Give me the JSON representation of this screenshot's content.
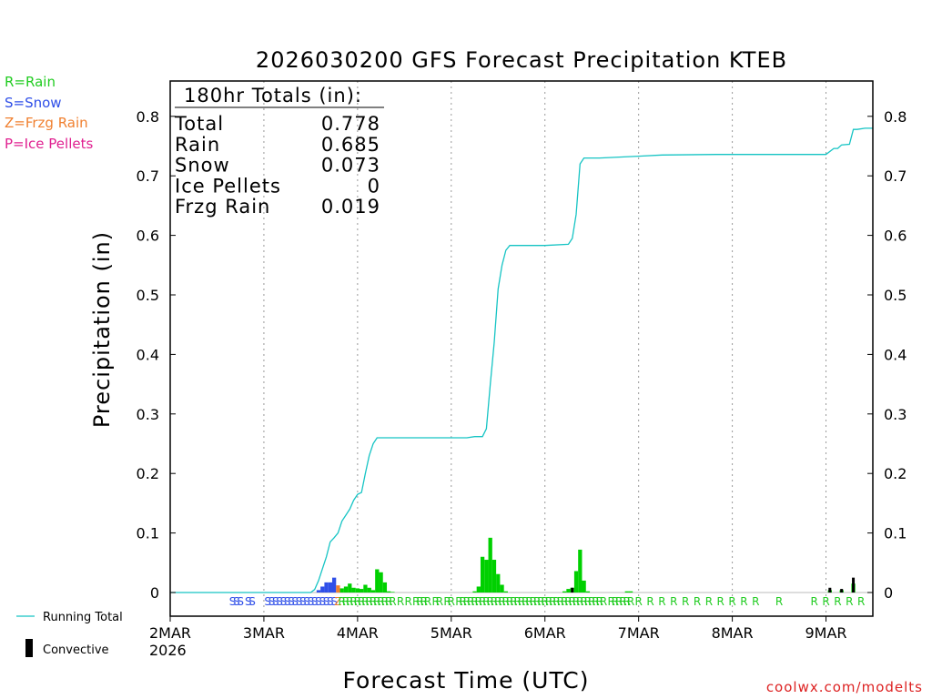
{
  "colors": {
    "rain": "#00d000",
    "snow": "#2f4fe8",
    "frzg": "#f08030",
    "ice": "#e02090",
    "conv": "#000000",
    "total": "#16c4c4",
    "link": "#dd2222"
  },
  "legend_left": [
    {
      "text": "R=Rain",
      "color": "#22cc22"
    },
    {
      "text": "S=Snow",
      "color": "#2f4fe8"
    },
    {
      "text": "Z=Frzg Rain",
      "color": "#f08030"
    },
    {
      "text": "P=Ice Pellets",
      "color": "#e02090"
    }
  ],
  "legend_bottom": {
    "running_total": "Running Total",
    "convective": "Convective",
    "year": "2026"
  },
  "footer": "coolwx.com/modelts",
  "chart_data": {
    "type": "bar",
    "title": "2026030200 GFS Forecast Precipitation KTEB",
    "xlabel": "Forecast Time (UTC)",
    "ylabel": "Precipitation (in)",
    "ylim": [
      0,
      0.86
    ],
    "xlim_hours": [
      0,
      180
    ],
    "yticks": [
      0,
      0.1,
      0.2,
      0.3,
      0.4,
      0.5,
      0.6,
      0.7,
      0.8
    ],
    "ytick_labels": [
      "0",
      "0.1",
      "0.2",
      "0.3",
      "0.4",
      "0.5",
      "0.6",
      "0.7",
      "0.8"
    ],
    "xticks": [
      {
        "hour": 0,
        "label": "2MAR"
      },
      {
        "hour": 24,
        "label": "3MAR"
      },
      {
        "hour": 48,
        "label": "4MAR"
      },
      {
        "hour": 72,
        "label": "5MAR"
      },
      {
        "hour": 96,
        "label": "6MAR"
      },
      {
        "hour": 120,
        "label": "7MAR"
      },
      {
        "hour": 144,
        "label": "8MAR"
      },
      {
        "hour": 168,
        "label": "9MAR"
      }
    ],
    "totals_box": {
      "header": "180hr Totals (in):",
      "rows": [
        {
          "label": "Total",
          "value": "0.778"
        },
        {
          "label": "Rain",
          "value": "0.685"
        },
        {
          "label": "Snow",
          "value": "0.073"
        },
        {
          "label": "Ice Pellets",
          "value": "0"
        },
        {
          "label": "Frzg Rain",
          "value": "0.019"
        }
      ]
    },
    "precip_bars": [
      {
        "hour": 38,
        "type": "snow",
        "value": 0.004
      },
      {
        "hour": 39,
        "type": "snow",
        "value": 0.01
      },
      {
        "hour": 40,
        "type": "snow",
        "value": 0.017
      },
      {
        "hour": 41,
        "type": "snow",
        "value": 0.017
      },
      {
        "hour": 42,
        "type": "snow",
        "value": 0.025
      },
      {
        "hour": 43,
        "type": "frzg",
        "value": 0.012
      },
      {
        "hour": 44,
        "type": "rain",
        "value": 0.007
      },
      {
        "hour": 45,
        "type": "rain",
        "value": 0.01
      },
      {
        "hour": 46,
        "type": "rain",
        "value": 0.015
      },
      {
        "hour": 47,
        "type": "rain",
        "value": 0.008
      },
      {
        "hour": 48,
        "type": "rain",
        "value": 0.007
      },
      {
        "hour": 49,
        "type": "rain",
        "value": 0.006
      },
      {
        "hour": 50,
        "type": "rain",
        "value": 0.013
      },
      {
        "hour": 51,
        "type": "rain",
        "value": 0.008
      },
      {
        "hour": 52,
        "type": "rain",
        "value": 0.004
      },
      {
        "hour": 53,
        "type": "rain",
        "value": 0.039
      },
      {
        "hour": 54,
        "type": "rain",
        "value": 0.034
      },
      {
        "hour": 55,
        "type": "rain",
        "value": 0.017
      },
      {
        "hour": 56,
        "type": "rain",
        "value": 0.002
      },
      {
        "hour": 57,
        "type": "rain",
        "value": 0.001
      },
      {
        "hour": 78,
        "type": "rain",
        "value": 0.002
      },
      {
        "hour": 79,
        "type": "rain",
        "value": 0.01
      },
      {
        "hour": 80,
        "type": "rain",
        "value": 0.06
      },
      {
        "hour": 81,
        "type": "rain",
        "value": 0.055
      },
      {
        "hour": 82,
        "type": "rain",
        "value": 0.092
      },
      {
        "hour": 83,
        "type": "rain",
        "value": 0.055
      },
      {
        "hour": 84,
        "type": "rain",
        "value": 0.031
      },
      {
        "hour": 85,
        "type": "rain",
        "value": 0.013
      },
      {
        "hour": 86,
        "type": "rain",
        "value": 0.002
      },
      {
        "hour": 101,
        "type": "rain",
        "value": 0.002
      },
      {
        "hour": 102,
        "type": "rain",
        "value": 0.006
      },
      {
        "hour": 103,
        "type": "rain",
        "value": 0.008
      },
      {
        "hour": 104,
        "type": "rain",
        "value": 0.036
      },
      {
        "hour": 105,
        "type": "rain",
        "value": 0.072
      },
      {
        "hour": 106,
        "type": "rain",
        "value": 0.02
      },
      {
        "hour": 107,
        "type": "rain",
        "value": 0.002
      },
      {
        "hour": 117,
        "type": "rain",
        "value": 0.002
      },
      {
        "hour": 118,
        "type": "rain",
        "value": 0.002
      },
      {
        "hour": 169,
        "type": "rain",
        "value": 0.004
      },
      {
        "hour": 172,
        "type": "rain",
        "value": 0.004
      },
      {
        "hour": 175,
        "type": "rain",
        "value": 0.015
      }
    ],
    "convective_bars": [
      {
        "hour": 103,
        "value": 0.008
      },
      {
        "hour": 169,
        "value": 0.008
      },
      {
        "hour": 172,
        "value": 0.006
      },
      {
        "hour": 175,
        "value": 0.025
      }
    ],
    "running_total": {
      "x": [
        0,
        36,
        37,
        38,
        39,
        40,
        41,
        42,
        43,
        44,
        45,
        46,
        47,
        48,
        49,
        50,
        51,
        52,
        53,
        54,
        55,
        56,
        58,
        60,
        66,
        72,
        76,
        78,
        80,
        81,
        82,
        83,
        84,
        85,
        86,
        87,
        90,
        96,
        102,
        103,
        104,
        105,
        106,
        107,
        108,
        110,
        120,
        126,
        140,
        160,
        167,
        168,
        170,
        171,
        172,
        174,
        175,
        176,
        178,
        180
      ],
      "y": [
        0,
        0,
        0.005,
        0.02,
        0.04,
        0.06,
        0.085,
        0.092,
        0.1,
        0.12,
        0.13,
        0.14,
        0.155,
        0.165,
        0.168,
        0.2,
        0.23,
        0.25,
        0.26,
        0.26,
        0.26,
        0.26,
        0.26,
        0.26,
        0.26,
        0.26,
        0.26,
        0.262,
        0.262,
        0.275,
        0.35,
        0.42,
        0.51,
        0.55,
        0.575,
        0.583,
        0.583,
        0.583,
        0.585,
        0.595,
        0.635,
        0.72,
        0.73,
        0.73,
        0.73,
        0.73,
        0.733,
        0.735,
        0.736,
        0.736,
        0.736,
        0.736,
        0.746,
        0.746,
        0.752,
        0.753,
        0.778,
        0.778,
        0.78,
        0.78
      ]
    },
    "type_codes": [
      {
        "hour": 16,
        "code": "S"
      },
      {
        "hour": 17,
        "code": "S"
      },
      {
        "hour": 18,
        "code": "S"
      },
      {
        "hour": 20,
        "code": "S"
      },
      {
        "hour": 21,
        "code": "S"
      },
      {
        "hour": 25,
        "code": "S"
      },
      {
        "hour": 26,
        "code": "S"
      },
      {
        "hour": 27,
        "code": "S"
      },
      {
        "hour": 28,
        "code": "S"
      },
      {
        "hour": 29,
        "code": "S"
      },
      {
        "hour": 30,
        "code": "S"
      },
      {
        "hour": 31,
        "code": "S"
      },
      {
        "hour": 32,
        "code": "S"
      },
      {
        "hour": 33,
        "code": "S"
      },
      {
        "hour": 34,
        "code": "S"
      },
      {
        "hour": 35,
        "code": "S"
      },
      {
        "hour": 36,
        "code": "S"
      },
      {
        "hour": 37,
        "code": "S"
      },
      {
        "hour": 38,
        "code": "S"
      },
      {
        "hour": 39,
        "code": "S"
      },
      {
        "hour": 40,
        "code": "S"
      },
      {
        "hour": 41,
        "code": "S"
      },
      {
        "hour": 42,
        "code": "S"
      },
      {
        "hour": 43,
        "code": "Z"
      },
      {
        "hour": 44,
        "code": "R"
      },
      {
        "hour": 45,
        "code": "R"
      },
      {
        "hour": 46,
        "code": "R"
      },
      {
        "hour": 47,
        "code": "R"
      },
      {
        "hour": 48,
        "code": "R"
      },
      {
        "hour": 49,
        "code": "R"
      },
      {
        "hour": 50,
        "code": "R"
      },
      {
        "hour": 51,
        "code": "R"
      },
      {
        "hour": 52,
        "code": "R"
      },
      {
        "hour": 53,
        "code": "R"
      },
      {
        "hour": 54,
        "code": "R"
      },
      {
        "hour": 55,
        "code": "R"
      },
      {
        "hour": 56,
        "code": "R"
      },
      {
        "hour": 57,
        "code": "R"
      },
      {
        "hour": 59,
        "code": "R"
      },
      {
        "hour": 61,
        "code": "R"
      },
      {
        "hour": 63,
        "code": "R"
      },
      {
        "hour": 64,
        "code": "R"
      },
      {
        "hour": 65,
        "code": "R"
      },
      {
        "hour": 66,
        "code": "R"
      },
      {
        "hour": 68,
        "code": "R"
      },
      {
        "hour": 69,
        "code": "R"
      },
      {
        "hour": 71,
        "code": "R"
      },
      {
        "hour": 72,
        "code": "R"
      },
      {
        "hour": 74,
        "code": "R"
      },
      {
        "hour": 75,
        "code": "R"
      },
      {
        "hour": 76,
        "code": "R"
      },
      {
        "hour": 77,
        "code": "R"
      },
      {
        "hour": 78,
        "code": "R"
      },
      {
        "hour": 79,
        "code": "R"
      },
      {
        "hour": 80,
        "code": "R"
      },
      {
        "hour": 81,
        "code": "R"
      },
      {
        "hour": 82,
        "code": "R"
      },
      {
        "hour": 83,
        "code": "R"
      },
      {
        "hour": 84,
        "code": "R"
      },
      {
        "hour": 85,
        "code": "R"
      },
      {
        "hour": 86,
        "code": "R"
      },
      {
        "hour": 87,
        "code": "R"
      },
      {
        "hour": 88,
        "code": "R"
      },
      {
        "hour": 89,
        "code": "R"
      },
      {
        "hour": 90,
        "code": "R"
      },
      {
        "hour": 91,
        "code": "R"
      },
      {
        "hour": 92,
        "code": "R"
      },
      {
        "hour": 93,
        "code": "R"
      },
      {
        "hour": 94,
        "code": "R"
      },
      {
        "hour": 95,
        "code": "R"
      },
      {
        "hour": 96,
        "code": "R"
      },
      {
        "hour": 97,
        "code": "R"
      },
      {
        "hour": 98,
        "code": "R"
      },
      {
        "hour": 99,
        "code": "R"
      },
      {
        "hour": 100,
        "code": "R"
      },
      {
        "hour": 101,
        "code": "R"
      },
      {
        "hour": 102,
        "code": "R"
      },
      {
        "hour": 103,
        "code": "R"
      },
      {
        "hour": 104,
        "code": "R"
      },
      {
        "hour": 105,
        "code": "R"
      },
      {
        "hour": 106,
        "code": "R"
      },
      {
        "hour": 107,
        "code": "R"
      },
      {
        "hour": 108,
        "code": "R"
      },
      {
        "hour": 109,
        "code": "R"
      },
      {
        "hour": 110,
        "code": "R"
      },
      {
        "hour": 111,
        "code": "R"
      },
      {
        "hour": 113,
        "code": "R"
      },
      {
        "hour": 114,
        "code": "R"
      },
      {
        "hour": 115,
        "code": "R"
      },
      {
        "hour": 116,
        "code": "R"
      },
      {
        "hour": 117,
        "code": "R"
      },
      {
        "hour": 118,
        "code": "R"
      },
      {
        "hour": 120,
        "code": "R"
      },
      {
        "hour": 123,
        "code": "R"
      },
      {
        "hour": 126,
        "code": "R"
      },
      {
        "hour": 129,
        "code": "R"
      },
      {
        "hour": 132,
        "code": "R"
      },
      {
        "hour": 135,
        "code": "R"
      },
      {
        "hour": 138,
        "code": "R"
      },
      {
        "hour": 141,
        "code": "R"
      },
      {
        "hour": 144,
        "code": "R"
      },
      {
        "hour": 147,
        "code": "R"
      },
      {
        "hour": 150,
        "code": "R"
      },
      {
        "hour": 156,
        "code": "R"
      },
      {
        "hour": 165,
        "code": "R"
      },
      {
        "hour": 168,
        "code": "R"
      },
      {
        "hour": 171,
        "code": "R"
      },
      {
        "hour": 174,
        "code": "R"
      },
      {
        "hour": 177,
        "code": "R"
      }
    ]
  }
}
